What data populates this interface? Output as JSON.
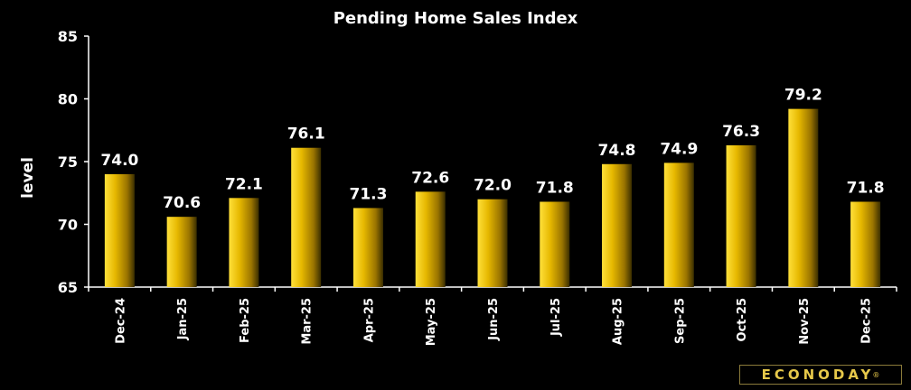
{
  "chart_data": {
    "type": "bar",
    "title": "Pending Home Sales Index",
    "ylabel": "level",
    "xlabel": "",
    "ylim": [
      65,
      85
    ],
    "yticks": [
      65,
      70,
      75,
      80,
      85
    ],
    "grid": false,
    "categories": [
      "Dec-24",
      "Jan-25",
      "Feb-25",
      "Mar-25",
      "Apr-25",
      "May-25",
      "Jun-25",
      "Jul-25",
      "Aug-25",
      "Sep-25",
      "Oct-25",
      "Nov-25",
      "Dec-25"
    ],
    "values": [
      74.0,
      70.6,
      72.1,
      76.1,
      71.3,
      72.6,
      72.0,
      71.8,
      74.8,
      74.9,
      76.3,
      79.2,
      71.8
    ],
    "data_labels": [
      "74.0",
      "70.6",
      "72.1",
      "76.1",
      "71.3",
      "72.6",
      "72.0",
      "71.8",
      "74.8",
      "74.9",
      "76.3",
      "79.2",
      "71.8"
    ],
    "bar_color_light": "#ffe03a",
    "bar_color_dark": "#3a2e00",
    "background": "#000000",
    "text_color": "#ffffff"
  },
  "brand": {
    "name": "ECONODAY",
    "mark": "®"
  }
}
